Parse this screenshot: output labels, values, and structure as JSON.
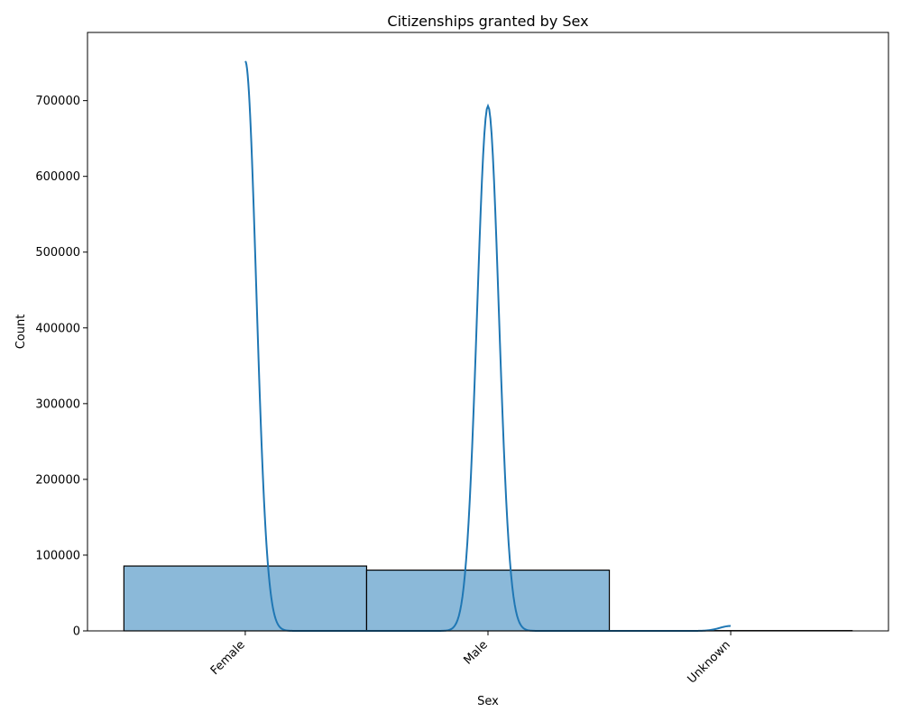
{
  "chart_data": {
    "type": "bar",
    "title": "Citizenships granted by Sex",
    "xlabel": "Sex",
    "ylabel": "Count",
    "categories": [
      "Female",
      "Male",
      "Unknown"
    ],
    "values": [
      85600,
      80200,
      400
    ],
    "ylim": [
      0,
      790000
    ],
    "yticks": [
      0,
      100000,
      200000,
      300000,
      400000,
      500000,
      600000,
      700000
    ],
    "ytick_labels": [
      "0",
      "100000",
      "200000",
      "300000",
      "400000",
      "500000",
      "600000",
      "700000"
    ],
    "grid": false,
    "bar_color": "#8bb9d9",
    "bar_edge_color": "#000000",
    "kde_color": "#1f77b4",
    "kde_peaks": [
      {
        "category": "Female",
        "peak": 752000
      },
      {
        "category": "Male",
        "peak": 693000
      },
      {
        "category": "Unknown",
        "peak": 6500
      }
    ]
  }
}
